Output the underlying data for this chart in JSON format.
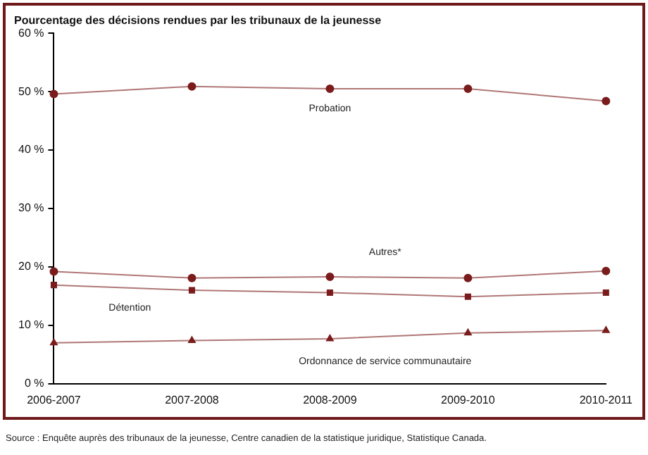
{
  "chart_data": {
    "type": "line",
    "title": "Pourcentage des décisions rendues par les tribunaux de la jeunesse",
    "categories": [
      "2006-2007",
      "2007-2008",
      "2008-2009",
      "2009-2010",
      "2010-2011"
    ],
    "series": [
      {
        "name": "Probation",
        "color": "#7b1c1c",
        "marker": "circle",
        "values": [
          49.6,
          50.9,
          50.5,
          50.5,
          48.4
        ]
      },
      {
        "name": "Autres*",
        "color": "#7b1c1c",
        "marker": "circle",
        "values": [
          19.2,
          18.1,
          18.3,
          18.1,
          19.3
        ]
      },
      {
        "name": "Détention",
        "color": "#7b1c1c",
        "marker": "square",
        "values": [
          16.9,
          16.0,
          15.6,
          14.9,
          15.6
        ]
      },
      {
        "name": "Ordonnance de service communautaire",
        "color": "#7b1c1c",
        "marker": "triangle",
        "values": [
          7.0,
          7.4,
          7.7,
          8.7,
          9.1
        ]
      }
    ],
    "ylim": [
      0,
      60
    ],
    "yticks": [
      {
        "value": 0,
        "label": "0 %"
      },
      {
        "value": 10,
        "label": "10 %"
      },
      {
        "value": 20,
        "label": "20 %"
      },
      {
        "value": 30,
        "label": "30 %"
      },
      {
        "value": 40,
        "label": "40 %"
      },
      {
        "value": 50,
        "label": "50 %"
      },
      {
        "value": 60,
        "label": "60 %"
      }
    ],
    "grid": false,
    "legend": false,
    "annotations": [
      "Source : Enquête auprès des tribunaux de la jeunesse, Centre canadien de la statistique juridique, Statistique Canada."
    ]
  }
}
